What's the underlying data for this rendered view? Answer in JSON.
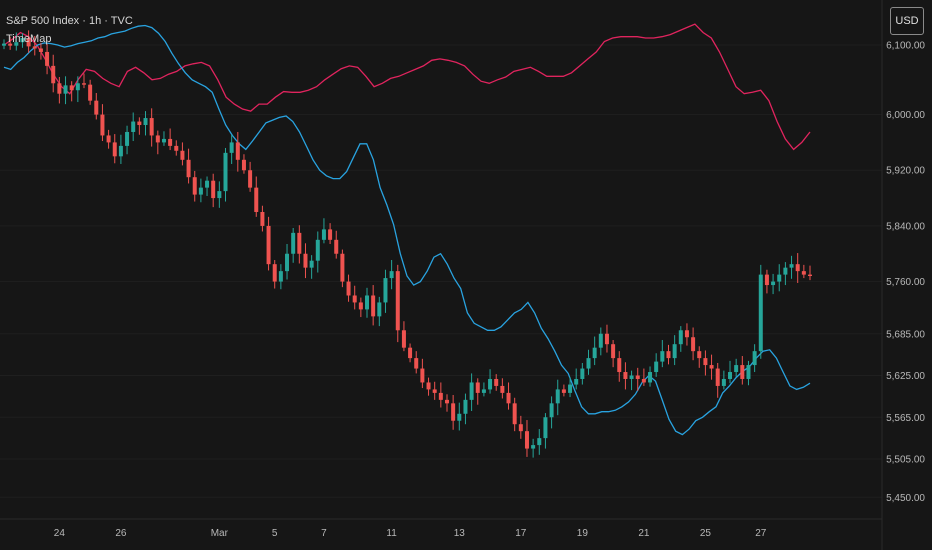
{
  "header": {
    "symbol_line": "S&P 500 Index · 1h · TVC",
    "indicator": "TimeMap"
  },
  "currency_button": "USD",
  "colors": {
    "background": "#161616",
    "up": "#26a69a",
    "down": "#ef5350",
    "upper_band": "#e0245e",
    "lower_band": "#29a3e0"
  },
  "chart_data": {
    "type": "candlestick",
    "title": "S&P 500 Index · 1h · TVC",
    "ylim": [
      5450,
      6160
    ],
    "y_ticks": [
      {
        "v": 6100,
        "label": "6,100.00"
      },
      {
        "v": 6000,
        "label": "6,000.00"
      },
      {
        "v": 5920,
        "label": "5,920.00"
      },
      {
        "v": 5840,
        "label": "5,840.00"
      },
      {
        "v": 5760,
        "label": "5,760.00"
      },
      {
        "v": 5685,
        "label": "5,685.00"
      },
      {
        "v": 5625,
        "label": "5,625.00"
      },
      {
        "v": 5565,
        "label": "5,565.00"
      },
      {
        "v": 5505,
        "label": "5,505.00"
      },
      {
        "v": 5450,
        "label": "5,450.00"
      }
    ],
    "x_ticks": [
      {
        "i": 9,
        "label": "24"
      },
      {
        "i": 19,
        "label": "26"
      },
      {
        "i": 35,
        "label": "Mar"
      },
      {
        "i": 44,
        "label": "5"
      },
      {
        "i": 52,
        "label": "7"
      },
      {
        "i": 63,
        "label": "11"
      },
      {
        "i": 74,
        "label": "13"
      },
      {
        "i": 84,
        "label": "17"
      },
      {
        "i": 94,
        "label": "19"
      },
      {
        "i": 104,
        "label": "21"
      },
      {
        "i": 114,
        "label": "25"
      },
      {
        "i": 123,
        "label": "27"
      }
    ],
    "closes": [
      6102,
      6099,
      6104,
      6110,
      6098,
      6095,
      6090,
      6070,
      6045,
      6030,
      6042,
      6035,
      6045,
      6043,
      6020,
      6000,
      5970,
      5960,
      5940,
      5955,
      5975,
      5990,
      5985,
      5995,
      5970,
      5960,
      5965,
      5955,
      5948,
      5935,
      5910,
      5885,
      5895,
      5905,
      5880,
      5890,
      5945,
      5960,
      5935,
      5920,
      5895,
      5860,
      5840,
      5785,
      5760,
      5775,
      5800,
      5830,
      5800,
      5780,
      5790,
      5820,
      5835,
      5820,
      5800,
      5760,
      5740,
      5730,
      5720,
      5740,
      5710,
      5730,
      5765,
      5775,
      5690,
      5665,
      5650,
      5635,
      5615,
      5605,
      5600,
      5590,
      5585,
      5560,
      5570,
      5590,
      5615,
      5600,
      5605,
      5620,
      5610,
      5600,
      5585,
      5555,
      5545,
      5520,
      5525,
      5535,
      5565,
      5585,
      5605,
      5600,
      5612,
      5620,
      5635,
      5650,
      5665,
      5685,
      5670,
      5650,
      5630,
      5620,
      5625,
      5620,
      5615,
      5630,
      5645,
      5660,
      5650,
      5670,
      5690,
      5680,
      5660,
      5650,
      5640,
      5635,
      5610,
      5620,
      5630,
      5640,
      5620,
      5640,
      5660,
      5770,
      5755,
      5760,
      5770,
      5780,
      5785,
      5775,
      5770,
      5768
    ],
    "upper_band": [
      6100,
      6108,
      6118,
      6112,
      6100,
      6080,
      6058,
      6040,
      6030,
      6050,
      6065,
      6062,
      6052,
      6045,
      6040,
      6062,
      6068,
      6060,
      6050,
      6052,
      6058,
      6062,
      6070,
      6073,
      6075,
      6070,
      6050,
      6025,
      6015,
      6008,
      6005,
      6015,
      6015,
      6025,
      6033,
      6032,
      6032,
      6035,
      6040,
      6050,
      6058,
      6066,
      6070,
      6068,
      6055,
      6040,
      6045,
      6052,
      6055,
      6060,
      6065,
      6070,
      6078,
      6080,
      6078,
      6075,
      6070,
      6058,
      6048,
      6045,
      6050,
      6054,
      6062,
      6065,
      6068,
      6062,
      6055,
      6055,
      6055,
      6060,
      6070,
      6080,
      6090,
      6105,
      6110,
      6112,
      6112,
      6112,
      6110,
      6110,
      6112,
      6115,
      6120,
      6125,
      6130,
      6118,
      6110,
      6090,
      6065,
      6040,
      6030,
      6032,
      6035,
      6020,
      5990,
      5965,
      5950,
      5960,
      5975
    ],
    "lower_band": [
      6068,
      6065,
      6075,
      6082,
      6092,
      6100,
      6103,
      6102,
      6100,
      6097,
      6099,
      6102,
      6104,
      6106,
      6110,
      6112,
      6116,
      6118,
      6120,
      6124,
      6127,
      6128,
      6125,
      6117,
      6105,
      6088,
      6073,
      6060,
      6050,
      6045,
      6040,
      6032,
      6008,
      5985,
      5970,
      5958,
      5950,
      5962,
      5975,
      5988,
      5992,
      5996,
      5998,
      5990,
      5975,
      5955,
      5935,
      5920,
      5912,
      5908,
      5908,
      5918,
      5938,
      5958,
      5958,
      5935,
      5895,
      5870,
      5842,
      5800,
      5768,
      5755,
      5760,
      5775,
      5795,
      5800,
      5785,
      5765,
      5750,
      5715,
      5700,
      5695,
      5690,
      5690,
      5695,
      5705,
      5715,
      5720,
      5730,
      5715,
      5693,
      5678,
      5660,
      5640,
      5628,
      5603,
      5580,
      5570,
      5570,
      5573,
      5573,
      5575,
      5580,
      5587,
      5598,
      5615,
      5625,
      5617,
      5590,
      5562,
      5545,
      5540,
      5548,
      5560,
      5565,
      5573,
      5580,
      5600,
      5610,
      5622,
      5631,
      5638,
      5650,
      5660,
      5662,
      5650,
      5630,
      5610,
      5605,
      5608,
      5614
    ]
  }
}
